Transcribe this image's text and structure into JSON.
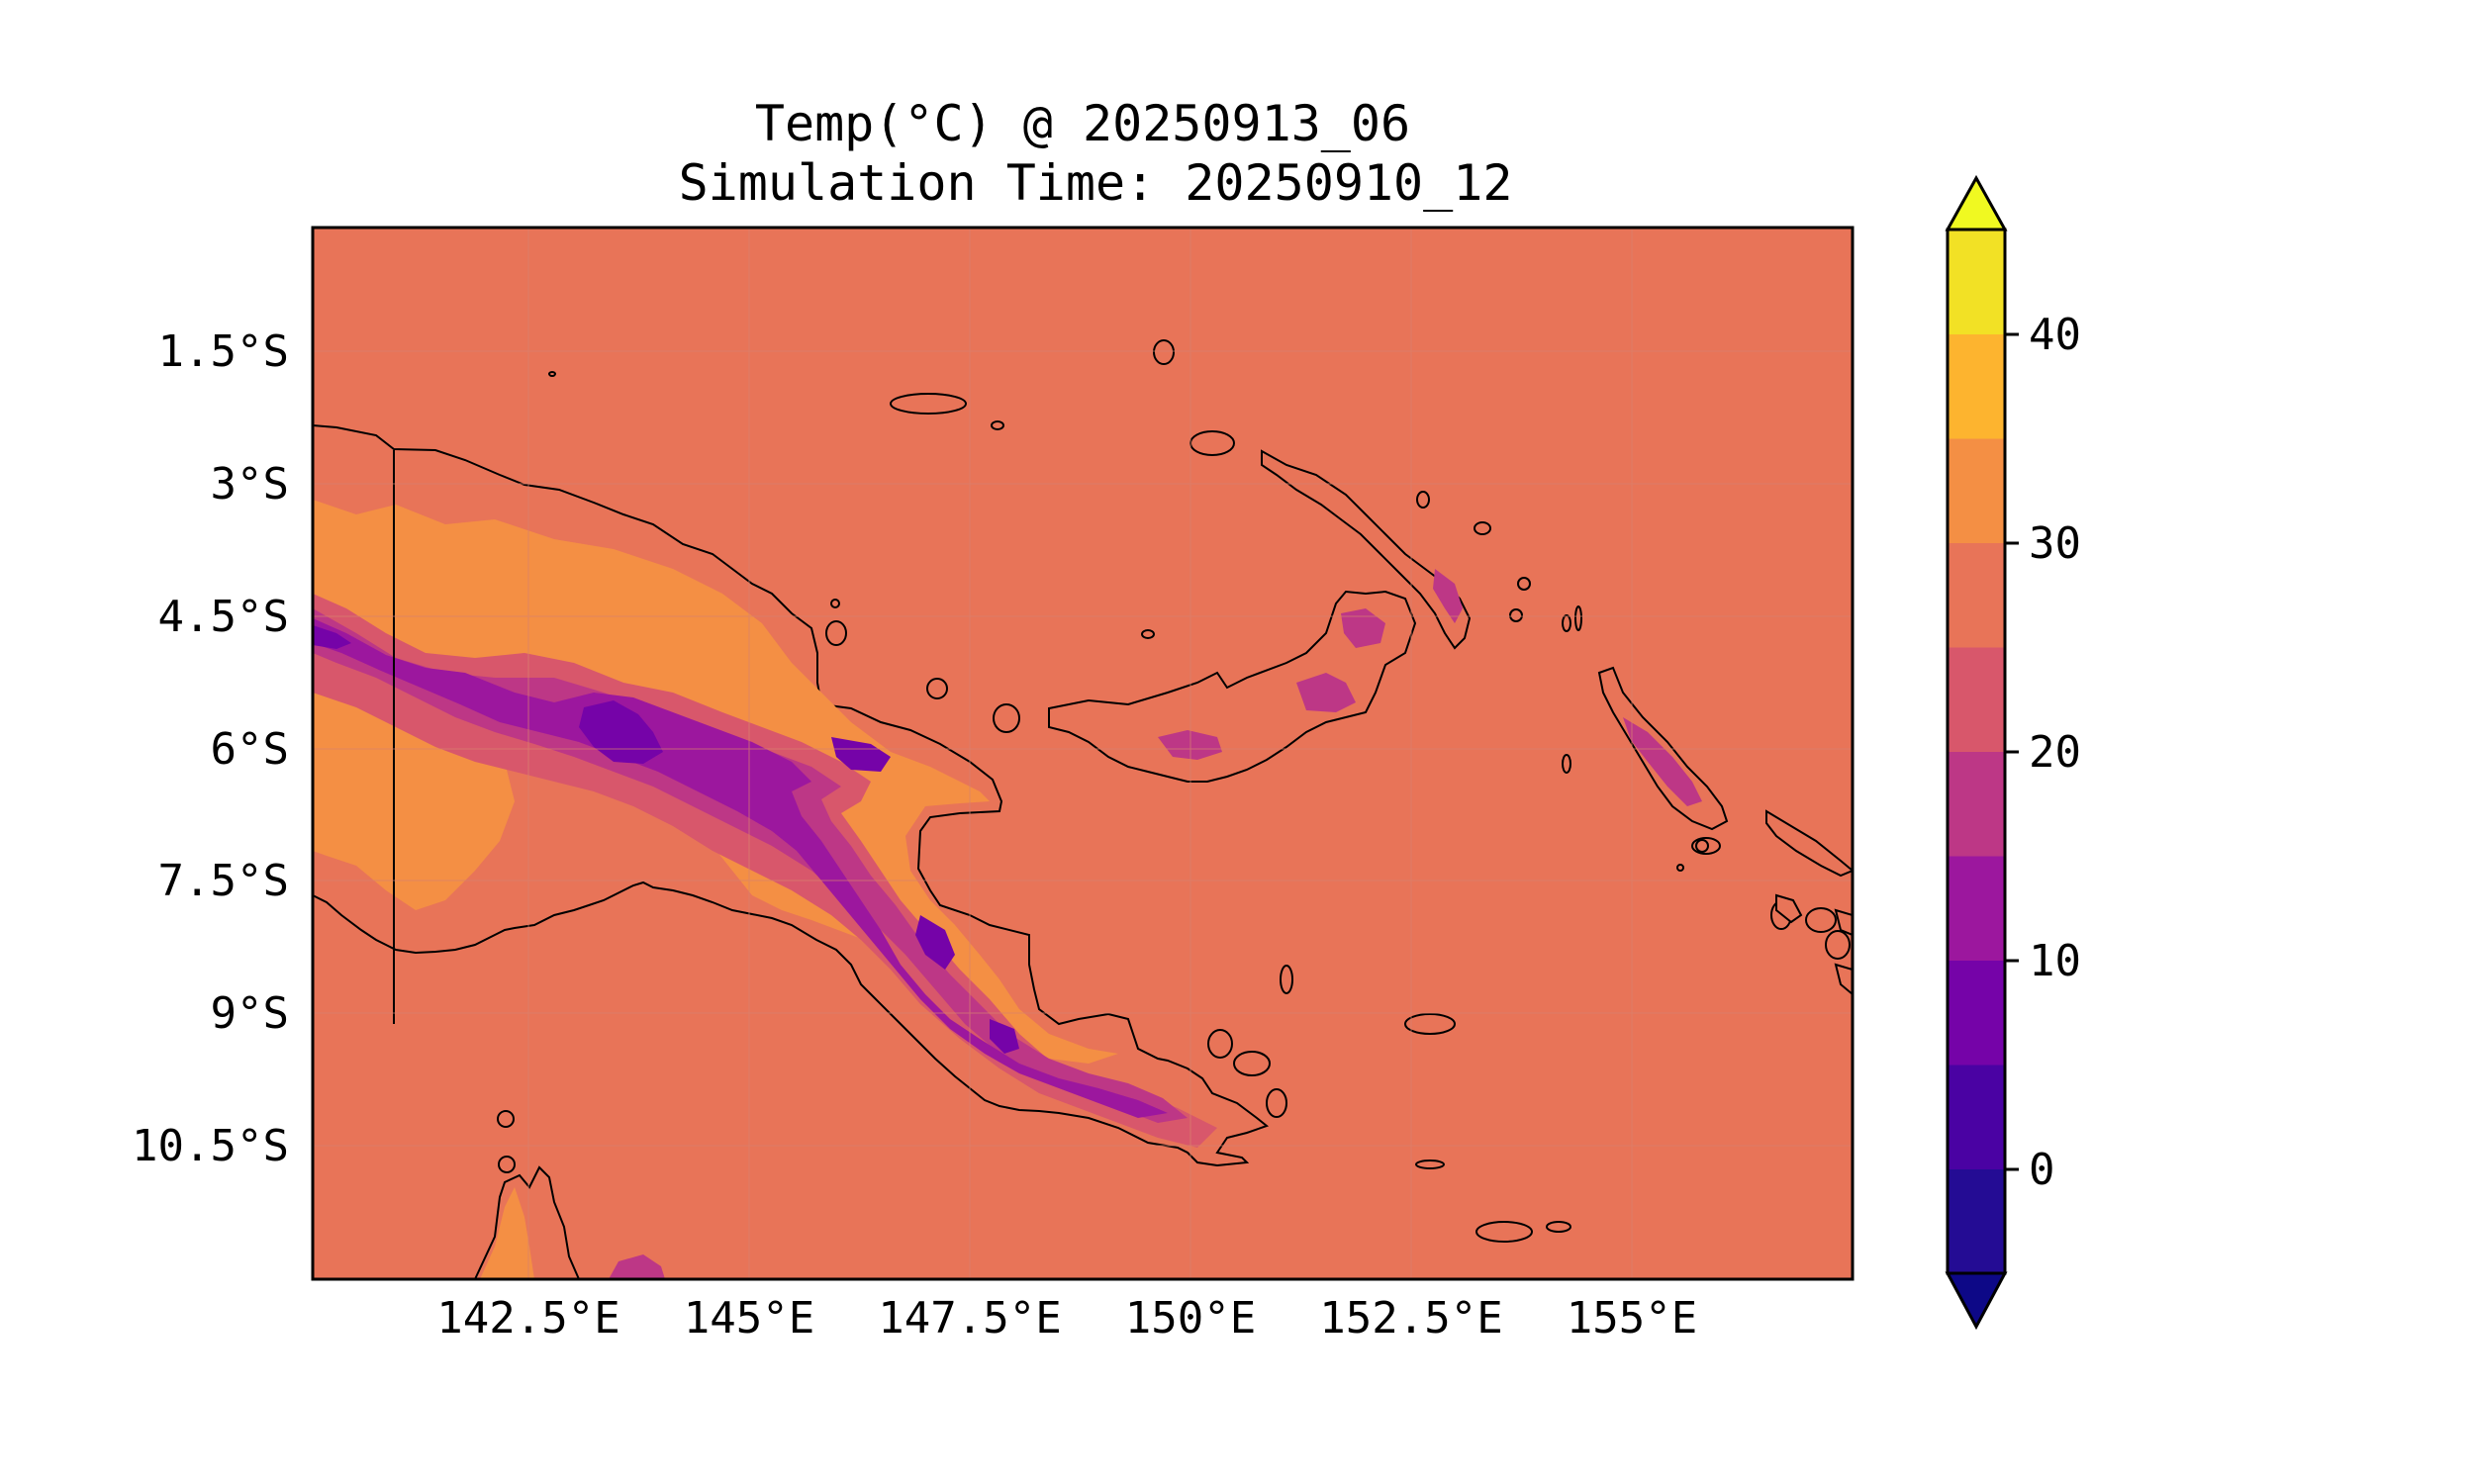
{
  "title": {
    "line1": "Temp(°C) @ 20250913_06",
    "line2": "Simulation Time: 20250910_12"
  },
  "map": {
    "region": "Papua New Guinea",
    "lon_range": [
      140.1,
      157.6
    ],
    "lat_range": [
      -12.5,
      -0.55
    ],
    "lon_ticks": [
      "142.5°E",
      "145°E",
      "147.5°E",
      "150°E",
      "152.5°E",
      "155°E"
    ],
    "lat_ticks": [
      "1.5°S",
      "3°S",
      "4.5°S",
      "6°S",
      "7.5°S",
      "9°S",
      "10.5°S"
    ],
    "ocean_color": "#e87458",
    "grid": true
  },
  "colorbar": {
    "ticks": [
      "0",
      "10",
      "20",
      "30",
      "40"
    ],
    "levels": [
      -5,
      0,
      5,
      10,
      15,
      20,
      25,
      30,
      35,
      40,
      45
    ],
    "colors": [
      "#240c94",
      "#4a02a3",
      "#7503a8",
      "#9c179e",
      "#bd3786",
      "#d8576b",
      "#e87458",
      "#f48f44",
      "#fdb42f",
      "#f2e125"
    ],
    "extend_low_color": "#0d0887",
    "extend_high_color": "#f0f921"
  }
}
